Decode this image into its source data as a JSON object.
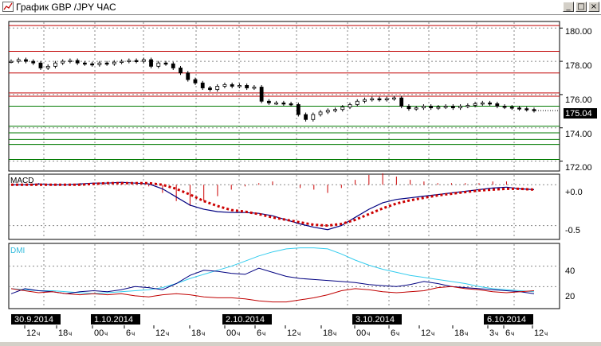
{
  "window": {
    "title": "График GBP /JPY  ЧАС",
    "buttons": {
      "minimize": "_",
      "maximize": "□",
      "close": "×"
    }
  },
  "colors": {
    "candle": "#000000",
    "resistance": "#c00000",
    "support": "#007a00",
    "macd_line": "#000080",
    "macd_signal": "#cc0000",
    "dmi_adx": "#33ccee",
    "dmi_plus": "#000080",
    "dmi_minus": "#c00000",
    "price_tag_bg": "#000000"
  },
  "price_panel": {
    "current_price": "175.04",
    "y_ticks": [
      "180.00",
      "178.00",
      "176.00",
      "174.00",
      "172.00"
    ]
  },
  "macd_panel": {
    "label": "MACD",
    "y_ticks": [
      "+0.0",
      "-0.5"
    ]
  },
  "dmi_panel": {
    "label": "DMI",
    "y_ticks": [
      "40",
      "20"
    ]
  },
  "time_axis": {
    "dates": [
      "30.9.2014",
      "1.10.2014",
      "2.10.2014",
      "3.10.2014",
      "6.10.2014"
    ],
    "hours": [
      "12",
      "18",
      "00",
      "6",
      "12",
      "18",
      "00",
      "6",
      "12",
      "18",
      "00",
      "6",
      "12",
      "18",
      "3",
      "6",
      "12"
    ],
    "hour_suffix": "ч"
  },
  "chart_data": [
    {
      "type": "candlestick",
      "title": "График GBP /JPY  ЧАС",
      "ylim": [
        171.5,
        180.3
      ],
      "y_ticks": [
        172.0,
        174.0,
        176.0,
        178.0,
        180.0
      ],
      "current_price": 175.04,
      "resistance_levels": [
        180.15,
        178.6,
        177.3,
        176.1,
        175.9
      ],
      "support_levels": [
        175.3,
        174.1,
        173.7,
        173.3,
        173.0,
        172.1
      ],
      "closes": [
        178.0,
        178.1,
        178.0,
        177.9,
        177.6,
        177.7,
        177.9,
        178.0,
        178.05,
        177.9,
        177.85,
        177.8,
        177.9,
        177.85,
        177.95,
        178.0,
        178.05,
        178.0,
        178.1,
        177.7,
        177.9,
        177.85,
        177.6,
        177.3,
        176.9,
        176.7,
        176.4,
        176.3,
        176.5,
        176.6,
        176.5,
        176.55,
        176.4,
        176.45,
        175.6,
        175.5,
        175.5,
        175.45,
        175.4,
        174.8,
        174.5,
        174.8,
        174.95,
        175.05,
        175.1,
        175.25,
        175.4,
        175.6,
        175.7,
        175.75,
        175.7,
        175.75,
        175.8,
        175.3,
        175.15,
        175.2,
        175.3,
        175.2,
        175.25,
        175.3,
        175.2,
        175.3,
        175.35,
        175.45,
        175.5,
        175.45,
        175.3,
        175.25,
        175.2,
        175.15,
        175.1,
        175.04
      ]
    },
    {
      "type": "line",
      "title": "MACD",
      "ylim": [
        -0.65,
        0.1
      ],
      "series": [
        {
          "name": "MACD",
          "values": [
            0.0,
            0.0,
            0.01,
            0.0,
            0.0,
            0.01,
            0.02,
            0.02,
            0.03,
            0.02,
            0.01,
            -0.05,
            -0.15,
            -0.25,
            -0.3,
            -0.33,
            -0.34,
            -0.34,
            -0.35,
            -0.38,
            -0.43,
            -0.48,
            -0.52,
            -0.55,
            -0.5,
            -0.4,
            -0.3,
            -0.22,
            -0.18,
            -0.16,
            -0.14,
            -0.12,
            -0.1,
            -0.08,
            -0.06,
            -0.04,
            -0.03,
            -0.05,
            -0.06
          ]
        },
        {
          "values": [
            0.0,
            0.0,
            0.0,
            0.0,
            0.0,
            0.0,
            0.01,
            0.02,
            0.02,
            0.02,
            0.02,
            0.0,
            -0.05,
            -0.12,
            -0.2,
            -0.26,
            -0.31,
            -0.33,
            -0.36,
            -0.4,
            -0.43,
            -0.46,
            -0.49,
            -0.5,
            -0.48,
            -0.43,
            -0.36,
            -0.29,
            -0.23,
            -0.19,
            -0.16,
            -0.13,
            -0.11,
            -0.09,
            -0.07,
            -0.06,
            -0.05,
            -0.05,
            -0.06
          ]
        }
      ],
      "histogram": [
        0.0,
        0.0,
        0.01,
        0.0,
        0.0,
        0.01,
        0.01,
        0.0,
        0.01,
        0.0,
        -0.01,
        -0.05,
        -0.1,
        -0.13,
        -0.1,
        -0.07,
        -0.03,
        -0.01,
        0.01,
        0.02,
        0.0,
        -0.02,
        -0.03,
        -0.05,
        -0.02,
        0.03,
        0.06,
        0.07,
        0.05,
        0.03,
        0.02,
        0.01,
        0.01,
        0.01,
        0.01,
        0.02,
        0.02,
        0.0,
        0.0
      ]
    },
    {
      "type": "line",
      "title": "DMI",
      "ylim": [
        0,
        60
      ],
      "series": [
        {
          "values": [
            18,
            17,
            16,
            16,
            15,
            14,
            13,
            14,
            15,
            16,
            17,
            19,
            23,
            28,
            32,
            36,
            40,
            45,
            50,
            54,
            57,
            58,
            58,
            57,
            52,
            46,
            41,
            37,
            34,
            31,
            29,
            27,
            25,
            23,
            20,
            18,
            17,
            16,
            15
          ]
        },
        {
          "values": [
            13,
            18,
            16,
            15,
            13,
            15,
            16,
            15,
            17,
            20,
            19,
            17,
            23,
            31,
            36,
            35,
            33,
            32,
            38,
            34,
            30,
            28,
            27,
            26,
            25,
            24,
            22,
            21,
            20,
            22,
            25,
            23,
            20,
            19,
            18,
            17,
            16,
            15,
            13
          ]
        },
        {
          "values": [
            18,
            16,
            14,
            15,
            13,
            12,
            13,
            12,
            13,
            11,
            10,
            12,
            13,
            12,
            10,
            9,
            9,
            8,
            6,
            5,
            5,
            7,
            9,
            12,
            16,
            18,
            17,
            15,
            14,
            15,
            16,
            19,
            20,
            18,
            17,
            15,
            14,
            15,
            16
          ]
        }
      ]
    }
  ]
}
